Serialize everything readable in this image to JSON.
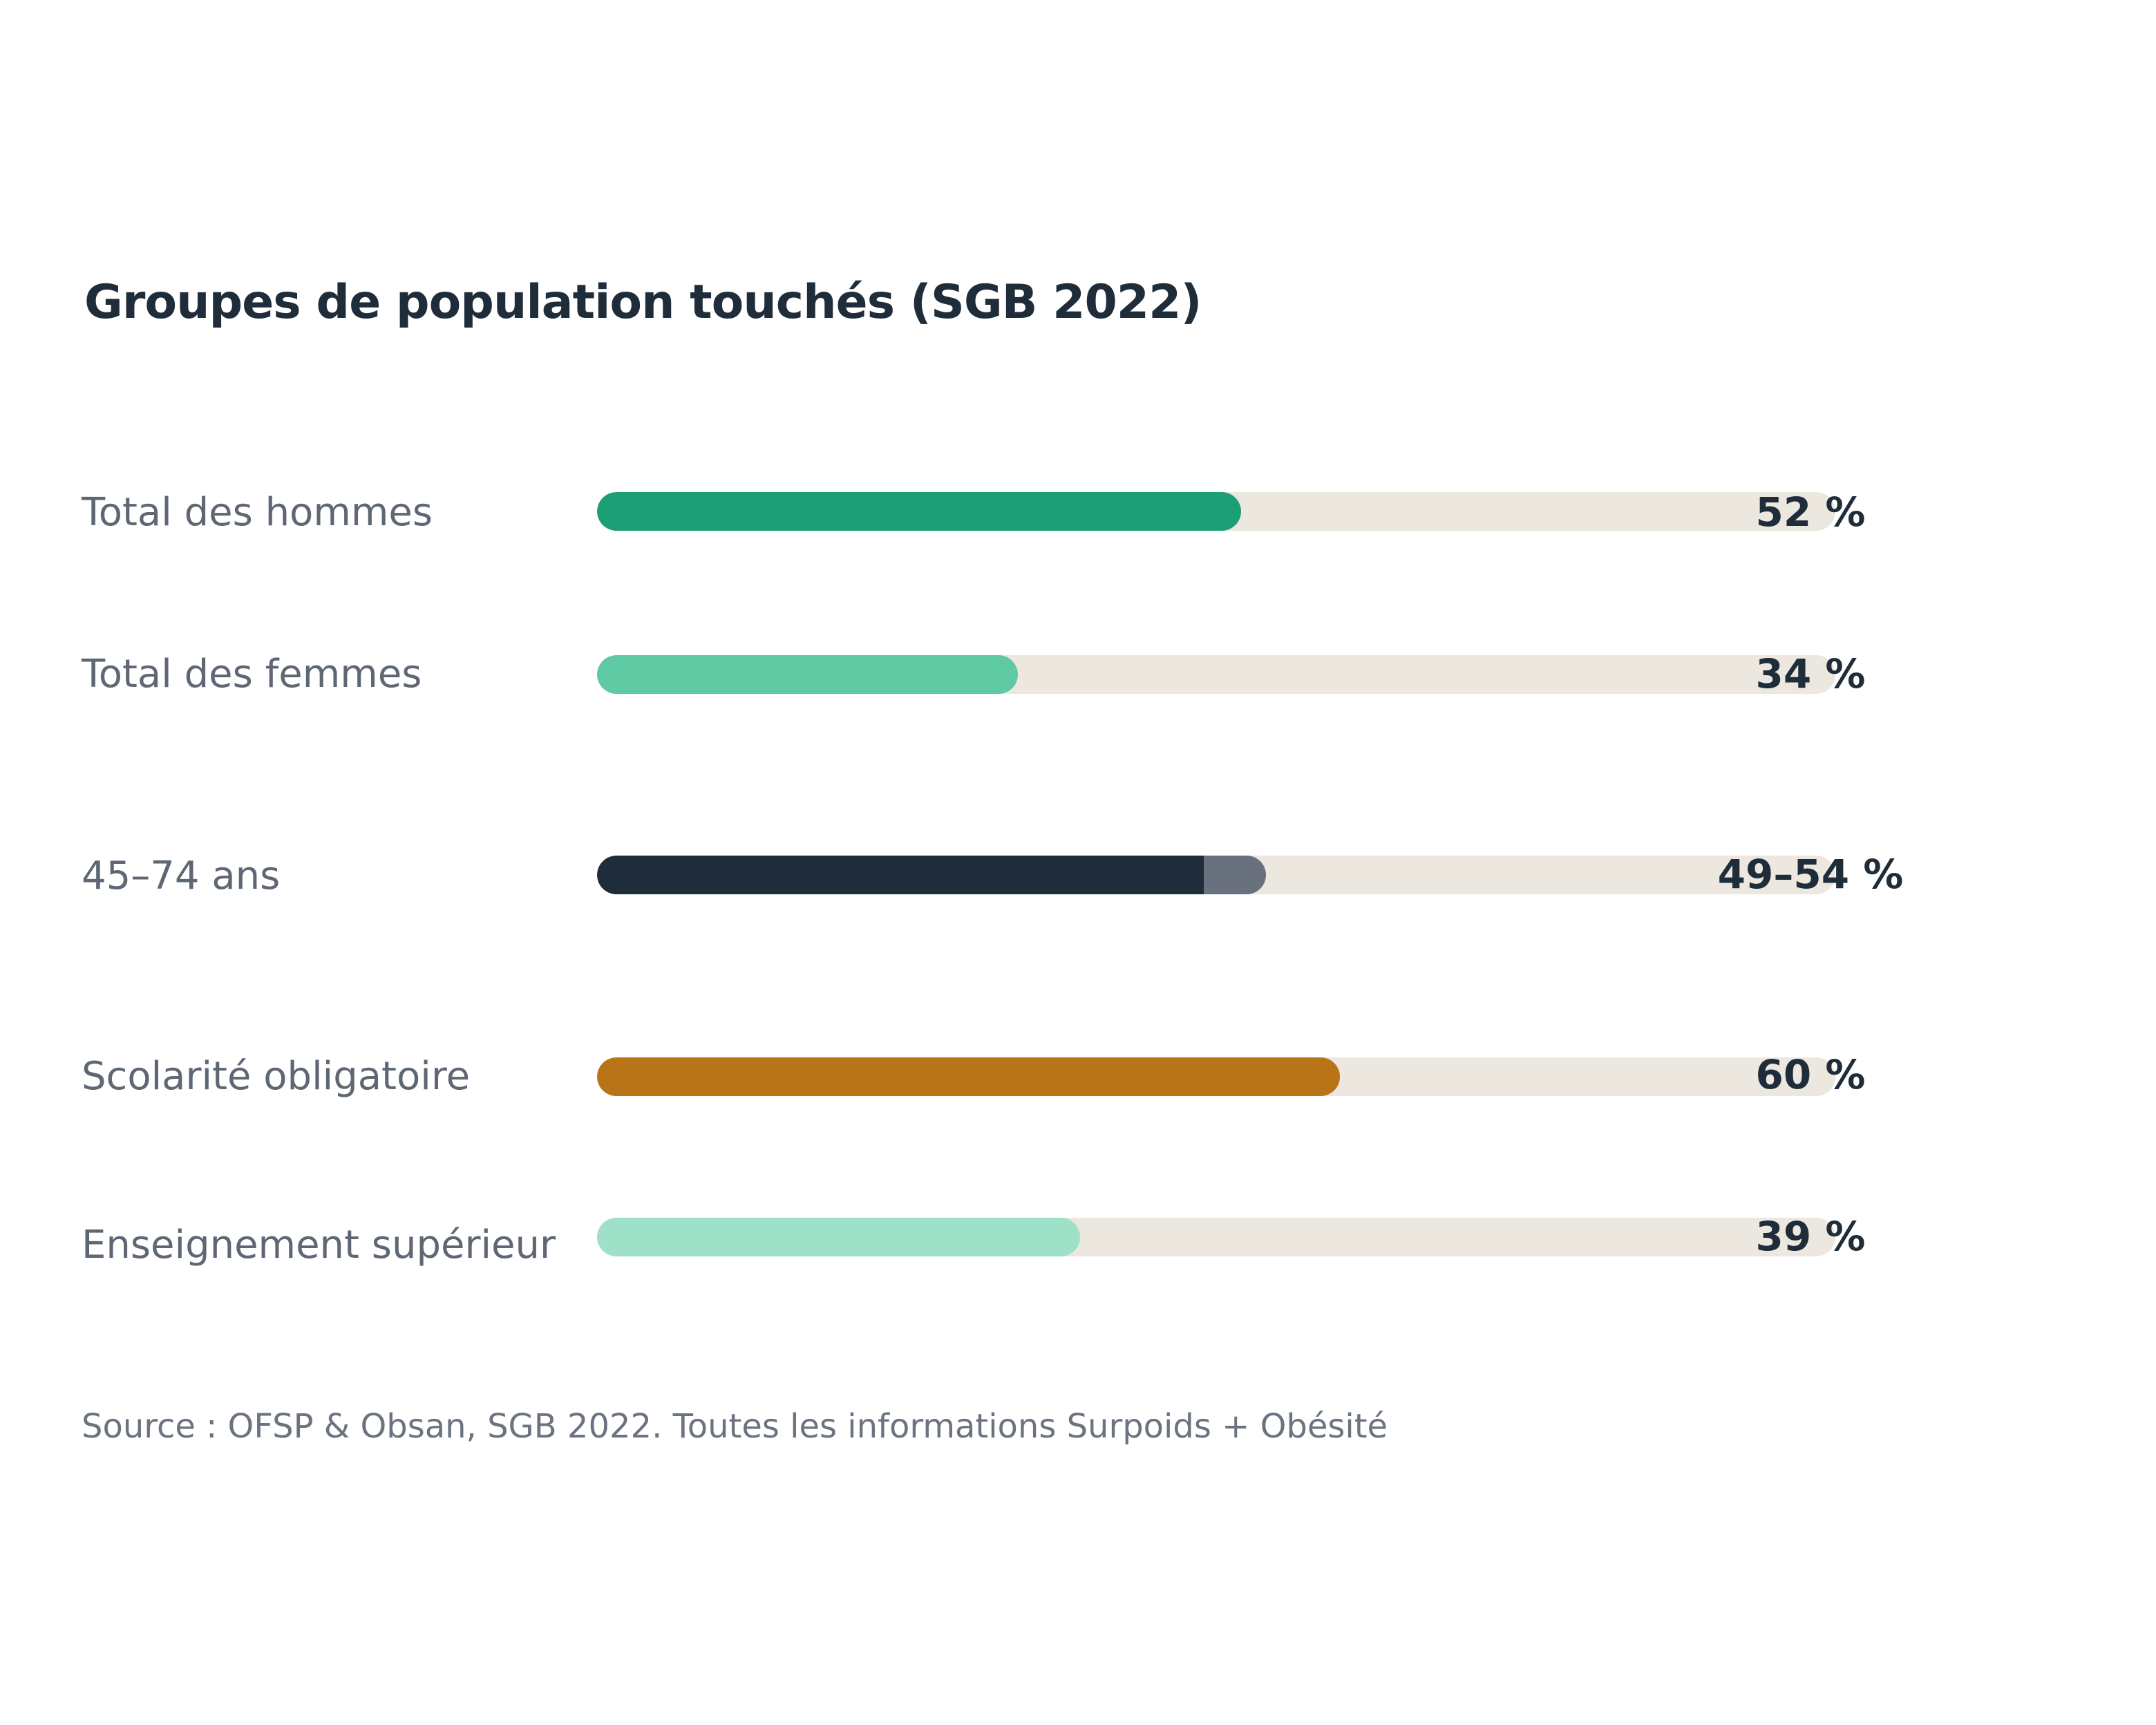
{
  "chart_data": {
    "type": "bar",
    "title": "Groupes de population touchés (SGB 2022)",
    "categories": [
      "Total des hommes",
      "Total des femmes",
      "45–74 ans",
      "Scolarité obligatoire",
      "Enseignement supérieur"
    ],
    "values": [
      52,
      34,
      [
        49,
        54
      ],
      60,
      39
    ],
    "value_labels": [
      "52 %",
      "34 %",
      "49–54 %",
      "60 %",
      "39 %"
    ],
    "xlim": [
      0,
      100
    ],
    "unit": "%",
    "grid": false,
    "colors": [
      "#1e9e74",
      "#5ec9a3",
      "#1f2d3a",
      "#b97417",
      "#9fe0c8"
    ],
    "range_extension_color": "#69707e",
    "track_color": "#ece8e0",
    "source": "Source : OFSP & Obsan, SGB 2022. Toutes les informations Surpoids + Obésité"
  }
}
